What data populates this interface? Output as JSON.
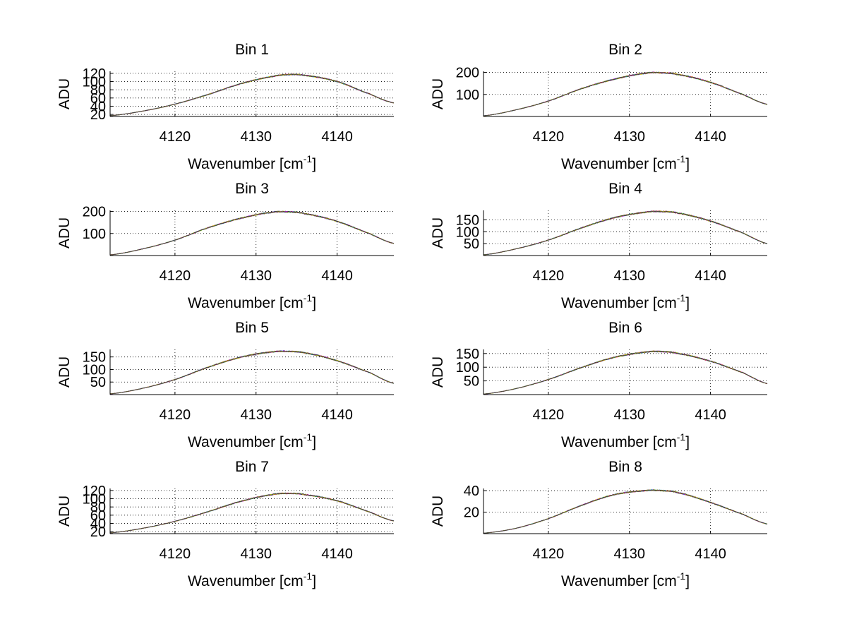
{
  "figure": {
    "background": "#ffffff",
    "series_colors": [
      "#0000ff",
      "#008000",
      "#ff0000",
      "#00bfbf",
      "#bf00bf",
      "#bfbf00",
      "#404040"
    ]
  },
  "chart_data": [
    {
      "type": "line",
      "title": "Bin 1",
      "xlabel": "Wavenumber [cm",
      "xlabel_sup": "-1",
      "xlabel_suffix": "]",
      "ylabel": "ADU",
      "xlim": [
        4112,
        4147
      ],
      "ylim": [
        15,
        125
      ],
      "xticks": [
        4120,
        4130,
        4140
      ],
      "yticks": [
        20,
        40,
        60,
        80,
        100,
        120
      ],
      "ytick_labels": [
        "20",
        "40",
        "60",
        "80",
        "100",
        "120"
      ],
      "grid": true,
      "series": [
        {
          "x": [
            4112,
            4116,
            4120,
            4124,
            4128,
            4132,
            4134,
            4136,
            4140,
            4144,
            4147
          ],
          "values": [
            17,
            28,
            45,
            68,
            94,
            112,
            117,
            115,
            100,
            70,
            48
          ]
        }
      ]
    },
    {
      "type": "line",
      "title": "Bin 2",
      "xlabel": "Wavenumber [cm",
      "xlabel_sup": "-1",
      "xlabel_suffix": "]",
      "ylabel": "ADU",
      "xlim": [
        4112,
        4147
      ],
      "ylim": [
        0,
        205
      ],
      "xticks": [
        4120,
        4130,
        4140
      ],
      "yticks": [
        100,
        200
      ],
      "ytick_labels": [
        "100",
        "200"
      ],
      "grid": true,
      "series": [
        {
          "x": [
            4112,
            4116,
            4120,
            4124,
            4128,
            4132,
            4134,
            4136,
            4140,
            4144,
            4147
          ],
          "values": [
            3,
            30,
            70,
            125,
            168,
            196,
            198,
            190,
            155,
            100,
            55
          ]
        }
      ]
    },
    {
      "type": "line",
      "title": "Bin 3",
      "xlabel": "Wavenumber [cm",
      "xlabel_sup": "-1",
      "xlabel_suffix": "]",
      "ylabel": "ADU",
      "xlim": [
        4112,
        4147
      ],
      "ylim": [
        0,
        205
      ],
      "xticks": [
        4120,
        4130,
        4140
      ],
      "yticks": [
        100,
        200
      ],
      "ytick_labels": [
        "100",
        "200"
      ],
      "grid": true,
      "series": [
        {
          "x": [
            4112,
            4116,
            4120,
            4124,
            4128,
            4132,
            4134,
            4136,
            4140,
            4144,
            4147
          ],
          "values": [
            3,
            30,
            70,
            125,
            168,
            196,
            198,
            190,
            155,
            100,
            55
          ]
        }
      ]
    },
    {
      "type": "line",
      "title": "Bin 4",
      "xlabel": "Wavenumber [cm",
      "xlabel_sup": "-1",
      "xlabel_suffix": "]",
      "ylabel": "ADU",
      "xlim": [
        4112,
        4147
      ],
      "ylim": [
        0,
        190
      ],
      "xticks": [
        4120,
        4130,
        4140
      ],
      "yticks": [
        50,
        100,
        150
      ],
      "ytick_labels": [
        "50",
        "100",
        "150"
      ],
      "grid": true,
      "series": [
        {
          "x": [
            4112,
            4116,
            4120,
            4124,
            4128,
            4132,
            4134,
            4136,
            4140,
            4144,
            4147
          ],
          "values": [
            3,
            28,
            65,
            115,
            158,
            182,
            185,
            178,
            145,
            95,
            50
          ]
        }
      ]
    },
    {
      "type": "line",
      "title": "Bin 5",
      "xlabel": "Wavenumber [cm",
      "xlabel_sup": "-1",
      "xlabel_suffix": "]",
      "ylabel": "ADU",
      "xlim": [
        4112,
        4147
      ],
      "ylim": [
        0,
        180
      ],
      "xticks": [
        4120,
        4130,
        4140
      ],
      "yticks": [
        50,
        100,
        150
      ],
      "ytick_labels": [
        "50",
        "100",
        "150"
      ],
      "grid": true,
      "series": [
        {
          "x": [
            4112,
            4116,
            4120,
            4124,
            4128,
            4132,
            4134,
            4136,
            4140,
            4144,
            4147
          ],
          "values": [
            3,
            25,
            60,
            108,
            148,
            170,
            172,
            166,
            135,
            88,
            45
          ]
        }
      ]
    },
    {
      "type": "line",
      "title": "Bin 6",
      "xlabel": "Wavenumber [cm",
      "xlabel_sup": "-1",
      "xlabel_suffix": "]",
      "ylabel": "ADU",
      "xlim": [
        4112,
        4147
      ],
      "ylim": [
        0,
        165
      ],
      "xticks": [
        4120,
        4130,
        4140
      ],
      "yticks": [
        50,
        100,
        150
      ],
      "ytick_labels": [
        "50",
        "100",
        "150"
      ],
      "grid": true,
      "series": [
        {
          "x": [
            4112,
            4116,
            4120,
            4124,
            4128,
            4132,
            4134,
            4136,
            4140,
            4144,
            4147
          ],
          "values": [
            2,
            22,
            55,
            98,
            135,
            155,
            157,
            150,
            122,
            80,
            40
          ]
        }
      ]
    },
    {
      "type": "line",
      "title": "Bin 7",
      "xlabel": "Wavenumber [cm",
      "xlabel_sup": "-1",
      "xlabel_suffix": "]",
      "ylabel": "ADU",
      "xlim": [
        4112,
        4147
      ],
      "ylim": [
        15,
        125
      ],
      "xticks": [
        4120,
        4130,
        4140
      ],
      "yticks": [
        20,
        40,
        60,
        80,
        100,
        120
      ],
      "ytick_labels": [
        "20",
        "40",
        "60",
        "80",
        "100",
        "120"
      ],
      "grid": true,
      "series": [
        {
          "x": [
            4112,
            4116,
            4120,
            4124,
            4128,
            4132,
            4134,
            4136,
            4140,
            4144,
            4147
          ],
          "values": [
            17,
            28,
            45,
            68,
            93,
            110,
            113,
            110,
            95,
            68,
            46
          ]
        }
      ]
    },
    {
      "type": "line",
      "title": "Bin 8",
      "xlabel": "Wavenumber [cm",
      "xlabel_sup": "-1",
      "xlabel_suffix": "]",
      "ylabel": "ADU",
      "xlim": [
        4112,
        4147
      ],
      "ylim": [
        0,
        42
      ],
      "xticks": [
        4120,
        4130,
        4140
      ],
      "yticks": [
        20,
        40
      ],
      "ytick_labels": [
        "20",
        "40"
      ],
      "grid": true,
      "series": [
        {
          "x": [
            4112,
            4116,
            4120,
            4124,
            4128,
            4132,
            4134,
            4136,
            4140,
            4144,
            4147
          ],
          "values": [
            0.5,
            5,
            14,
            26,
            36,
            40,
            40,
            38,
            29,
            18,
            9
          ]
        }
      ]
    }
  ]
}
